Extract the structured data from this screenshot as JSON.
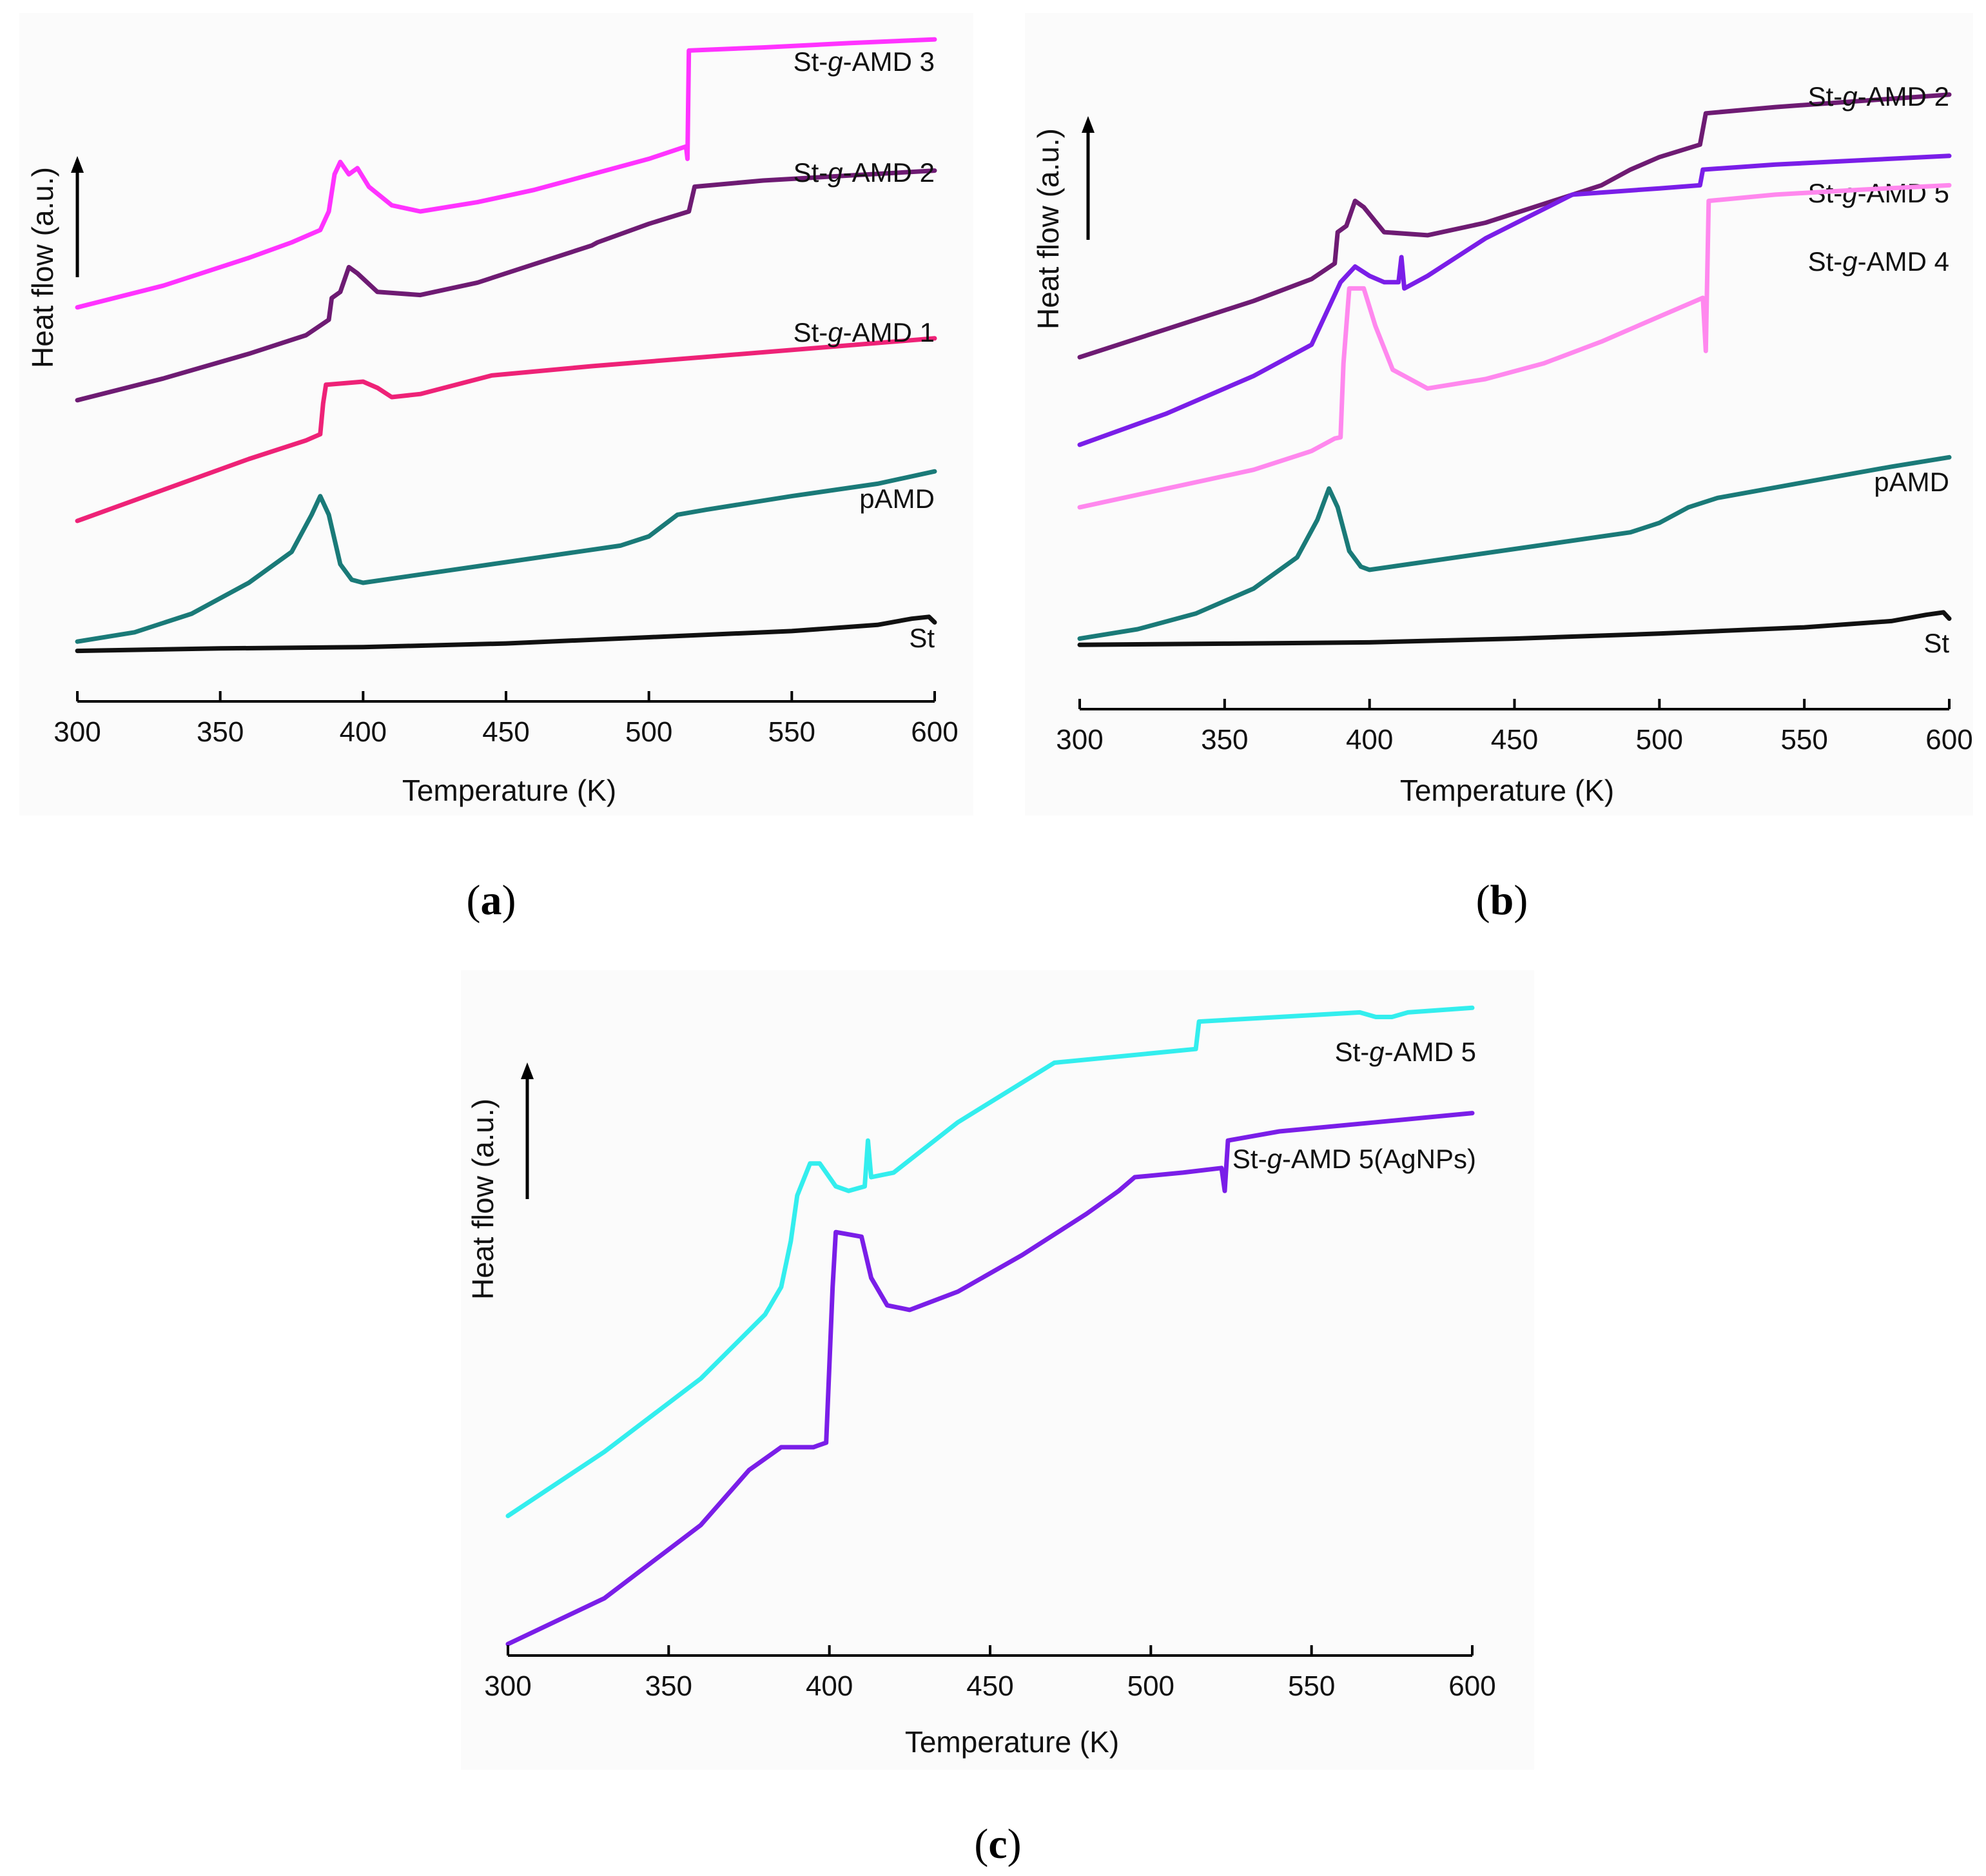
{
  "chart_data": [
    {
      "id": "a",
      "type": "line",
      "panel_label": "a",
      "xlabel": "Temperature (K)",
      "ylabel": "Heat flow (a.u.)",
      "xlim": [
        300,
        600
      ],
      "x_ticks": [
        300,
        350,
        400,
        450,
        500,
        550,
        600
      ],
      "ylim": [
        0,
        100
      ],
      "y_scale": "arbitrary units, curves vertically offset",
      "series": [
        {
          "name": "St-g-AMD 3",
          "color": "#ff33ff",
          "points": [
            [
              300,
              54.5
            ],
            [
              330,
              58
            ],
            [
              360,
              62.5
            ],
            [
              375,
              65
            ],
            [
              385,
              67
            ],
            [
              388,
              70
            ],
            [
              390,
              76
            ],
            [
              392,
              78
            ],
            [
              395,
              76
            ],
            [
              398,
              77
            ],
            [
              402,
              74
            ],
            [
              410,
              71
            ],
            [
              420,
              70
            ],
            [
              440,
              71.5
            ],
            [
              460,
              73.5
            ],
            [
              480,
              76
            ],
            [
              500,
              78.5
            ],
            [
              513,
              80.5
            ],
            [
              513.5,
              78.5
            ],
            [
              514,
              96
            ],
            [
              540,
              96.5
            ],
            [
              570,
              97.2
            ],
            [
              600,
              97.8
            ]
          ]
        },
        {
          "name": "St-g-AMD 2",
          "color": "#6e1b73",
          "points": [
            [
              300,
              39.5
            ],
            [
              330,
              43
            ],
            [
              360,
              47
            ],
            [
              380,
              50
            ],
            [
              388,
              52.5
            ],
            [
              389,
              56
            ],
            [
              392,
              57
            ],
            [
              395,
              61
            ],
            [
              398,
              60
            ],
            [
              405,
              57
            ],
            [
              420,
              56.5
            ],
            [
              440,
              58.5
            ],
            [
              460,
              61.5
            ],
            [
              480,
              64.5
            ],
            [
              482,
              65
            ],
            [
              500,
              68
            ],
            [
              514,
              70
            ],
            [
              516,
              74
            ],
            [
              540,
              75
            ],
            [
              570,
              75.8
            ],
            [
              600,
              76.6
            ]
          ]
        },
        {
          "name": "St-g-AMD 1",
          "color": "#ee2277",
          "points": [
            [
              300,
              20
            ],
            [
              330,
              25
            ],
            [
              360,
              30
            ],
            [
              380,
              33
            ],
            [
              385,
              34
            ],
            [
              386,
              39
            ],
            [
              387,
              42
            ],
            [
              400,
              42.5
            ],
            [
              405,
              41.5
            ],
            [
              410,
              40
            ],
            [
              420,
              40.5
            ],
            [
              445,
              43.5
            ],
            [
              480,
              45
            ],
            [
              520,
              46.5
            ],
            [
              560,
              48
            ],
            [
              600,
              49.5
            ]
          ]
        },
        {
          "name": "pAMD",
          "color": "#1a7a78",
          "points": [
            [
              300,
              0.5
            ],
            [
              320,
              2
            ],
            [
              340,
              5
            ],
            [
              360,
              10
            ],
            [
              375,
              15
            ],
            [
              382,
              21
            ],
            [
              385,
              24
            ],
            [
              388,
              21
            ],
            [
              392,
              13
            ],
            [
              396,
              10.5
            ],
            [
              400,
              10
            ],
            [
              430,
              12
            ],
            [
              460,
              14
            ],
            [
              490,
              16
            ],
            [
              500,
              17.5
            ],
            [
              510,
              21
            ],
            [
              520,
              21.8
            ],
            [
              550,
              24
            ],
            [
              580,
              26
            ],
            [
              600,
              28
            ]
          ]
        },
        {
          "name": "St",
          "color": "#111111",
          "points": [
            [
              300,
              -1
            ],
            [
              350,
              -0.6
            ],
            [
              400,
              -0.4
            ],
            [
              450,
              0.2
            ],
            [
              500,
              1.2
            ],
            [
              550,
              2.2
            ],
            [
              580,
              3.2
            ],
            [
              592,
              4.2
            ],
            [
              598,
              4.5
            ],
            [
              600,
              3.6
            ]
          ]
        }
      ]
    },
    {
      "id": "b",
      "type": "line",
      "panel_label": "b",
      "xlabel": "Temperature (K)",
      "ylabel": "Heat flow (a.u.)",
      "xlim": [
        300,
        600
      ],
      "x_ticks": [
        300,
        350,
        400,
        450,
        500,
        550,
        600
      ],
      "ylim": [
        0,
        100
      ],
      "y_scale": "arbitrary units, curves vertically offset",
      "series": [
        {
          "name": "St-g-AMD 2",
          "color": "#6e1b73",
          "points": [
            [
              300,
              47
            ],
            [
              330,
              51.5
            ],
            [
              360,
              56
            ],
            [
              380,
              59.5
            ],
            [
              388,
              62
            ],
            [
              389,
              67
            ],
            [
              392,
              68
            ],
            [
              395,
              72
            ],
            [
              398,
              71
            ],
            [
              405,
              67
            ],
            [
              420,
              66.5
            ],
            [
              440,
              68.5
            ],
            [
              460,
              71.5
            ],
            [
              480,
              74.5
            ],
            [
              490,
              77
            ],
            [
              500,
              79
            ],
            [
              514,
              81
            ],
            [
              516,
              86
            ],
            [
              540,
              87
            ],
            [
              570,
              88
            ],
            [
              600,
              89
            ]
          ]
        },
        {
          "name": "St-g-AMD 5",
          "color": "#7a1ee8",
          "points": [
            [
              300,
              33
            ],
            [
              330,
              38
            ],
            [
              360,
              44
            ],
            [
              380,
              49
            ],
            [
              385,
              54
            ],
            [
              390,
              59
            ],
            [
              395,
              61.5
            ],
            [
              400,
              60
            ],
            [
              405,
              59
            ],
            [
              410,
              59
            ],
            [
              411,
              63
            ],
            [
              412,
              58
            ],
            [
              420,
              60
            ],
            [
              440,
              66
            ],
            [
              470,
              73
            ],
            [
              500,
              74
            ],
            [
              514,
              74.5
            ],
            [
              515,
              77
            ],
            [
              540,
              77.8
            ],
            [
              570,
              78.5
            ],
            [
              600,
              79.2
            ]
          ]
        },
        {
          "name": "St-g-AMD 4",
          "color": "#ff88ee",
          "points": [
            [
              300,
              23
            ],
            [
              330,
              26
            ],
            [
              360,
              29
            ],
            [
              380,
              32
            ],
            [
              388,
              34
            ],
            [
              390,
              34.2
            ],
            [
              391,
              46
            ],
            [
              393,
              58
            ],
            [
              398,
              58
            ],
            [
              402,
              52
            ],
            [
              408,
              45
            ],
            [
              420,
              42
            ],
            [
              440,
              43.5
            ],
            [
              460,
              46
            ],
            [
              480,
              49.5
            ],
            [
              490,
              51.5
            ],
            [
              500,
              53.5
            ],
            [
              515,
              56.5
            ],
            [
              516,
              48
            ],
            [
              517,
              72
            ],
            [
              540,
              73
            ],
            [
              570,
              73.8
            ],
            [
              600,
              74.5
            ]
          ]
        },
        {
          "name": "pAMD",
          "color": "#1a7a78",
          "points": [
            [
              300,
              2
            ],
            [
              320,
              3.5
            ],
            [
              340,
              6
            ],
            [
              360,
              10
            ],
            [
              375,
              15
            ],
            [
              382,
              21
            ],
            [
              386,
              26
            ],
            [
              389,
              23
            ],
            [
              393,
              16
            ],
            [
              397,
              13.5
            ],
            [
              400,
              13
            ],
            [
              430,
              15
            ],
            [
              460,
              17
            ],
            [
              490,
              19
            ],
            [
              500,
              20.5
            ],
            [
              510,
              23
            ],
            [
              520,
              24.5
            ],
            [
              550,
              27
            ],
            [
              580,
              29.5
            ],
            [
              600,
              31
            ]
          ]
        },
        {
          "name": "St",
          "color": "#111111",
          "points": [
            [
              300,
              1
            ],
            [
              350,
              1.2
            ],
            [
              400,
              1.4
            ],
            [
              450,
              2
            ],
            [
              500,
              2.8
            ],
            [
              550,
              3.8
            ],
            [
              580,
              4.8
            ],
            [
              592,
              5.8
            ],
            [
              598,
              6.2
            ],
            [
              600,
              5.2
            ]
          ]
        }
      ]
    },
    {
      "id": "c",
      "type": "line",
      "panel_label": "c",
      "xlabel": "Temperature (K)",
      "ylabel": "Heat flow (a.u.)",
      "xlim": [
        300,
        600
      ],
      "x_ticks": [
        300,
        350,
        400,
        450,
        500,
        550,
        600
      ],
      "ylim": [
        0,
        100
      ],
      "y_scale": "arbitrary units, curves vertically offset",
      "series": [
        {
          "name": "St-g-AMD 5",
          "color": "#33eeee",
          "points": [
            [
              300,
              33
            ],
            [
              330,
              40
            ],
            [
              360,
              48
            ],
            [
              380,
              55
            ],
            [
              385,
              58
            ],
            [
              388,
              63
            ],
            [
              390,
              68
            ],
            [
              394,
              71.5
            ],
            [
              397,
              71.5
            ],
            [
              402,
              69
            ],
            [
              406,
              68.5
            ],
            [
              411,
              69
            ],
            [
              412,
              74
            ],
            [
              413,
              70
            ],
            [
              420,
              70.5
            ],
            [
              440,
              76
            ],
            [
              470,
              82.5
            ],
            [
              514,
              84
            ],
            [
              515,
              87
            ],
            [
              540,
              87.5
            ],
            [
              565,
              88
            ],
            [
              570,
              87.5
            ],
            [
              575,
              87.5
            ],
            [
              580,
              88
            ],
            [
              600,
              88.5
            ]
          ]
        },
        {
          "name": "St-g-AMD 5(AgNPs)",
          "color": "#7a1ee8",
          "points": [
            [
              300,
              19
            ],
            [
              330,
              24
            ],
            [
              360,
              32
            ],
            [
              375,
              38
            ],
            [
              385,
              40.5
            ],
            [
              395,
              40.5
            ],
            [
              399,
              41
            ],
            [
              401,
              58
            ],
            [
              402,
              64
            ],
            [
              410,
              63.5
            ],
            [
              413,
              59
            ],
            [
              418,
              56
            ],
            [
              425,
              55.5
            ],
            [
              440,
              57.5
            ],
            [
              460,
              61.5
            ],
            [
              480,
              66
            ],
            [
              490,
              68.5
            ],
            [
              495,
              70
            ],
            [
              510,
              70.5
            ],
            [
              522,
              71
            ],
            [
              523,
              68.5
            ],
            [
              524,
              74
            ],
            [
              540,
              75
            ],
            [
              570,
              76
            ],
            [
              600,
              77
            ]
          ]
        }
      ]
    }
  ]
}
